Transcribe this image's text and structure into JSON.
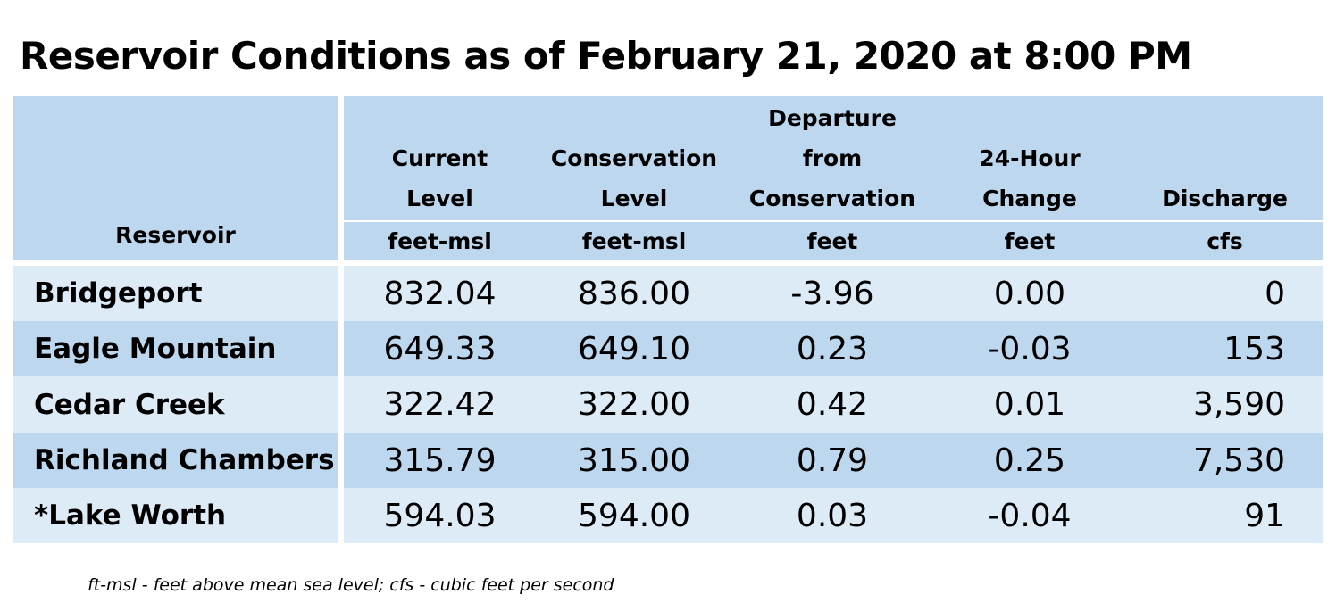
{
  "title": "Reservoir Conditions as of February 21, 2020 at 8:00 PM",
  "table": {
    "headers": {
      "reservoir": "Reservoir",
      "current_level": [
        "Current",
        "Level"
      ],
      "conservation_level": [
        "Conservation",
        "Level"
      ],
      "departure": [
        "Departure",
        "from",
        "Conservation"
      ],
      "change_24h": [
        "24-Hour",
        "Change"
      ],
      "discharge": "Discharge"
    },
    "units": {
      "current_level": "feet-msl",
      "conservation_level": "feet-msl",
      "departure": "feet",
      "change_24h": "feet",
      "discharge": "cfs"
    },
    "rows": [
      {
        "reservoir": "Bridgeport",
        "current_level": "832.04",
        "conservation_level": "836.00",
        "departure": "-3.96",
        "change_24h": "0.00",
        "discharge": "0"
      },
      {
        "reservoir": "Eagle Mountain",
        "current_level": "649.33",
        "conservation_level": "649.10",
        "departure": "0.23",
        "change_24h": "-0.03",
        "discharge": "153"
      },
      {
        "reservoir": "Cedar Creek",
        "current_level": "322.42",
        "conservation_level": "322.00",
        "departure": "0.42",
        "change_24h": "0.01",
        "discharge": "3,590"
      },
      {
        "reservoir": "Richland Chambers",
        "current_level": "315.79",
        "conservation_level": "315.00",
        "departure": "0.79",
        "change_24h": "0.25",
        "discharge": "7,530"
      },
      {
        "reservoir": "*Lake Worth",
        "current_level": "594.03",
        "conservation_level": "594.00",
        "departure": "0.03",
        "change_24h": "-0.04",
        "discharge": "91"
      }
    ]
  },
  "footnote": "ft-msl - feet above mean sea level; cfs - cubic feet per second",
  "colors": {
    "header_fill": "#bdd7ee",
    "row_light_fill": "#ddebf7",
    "row_dark_fill": "#bdd7ee"
  }
}
